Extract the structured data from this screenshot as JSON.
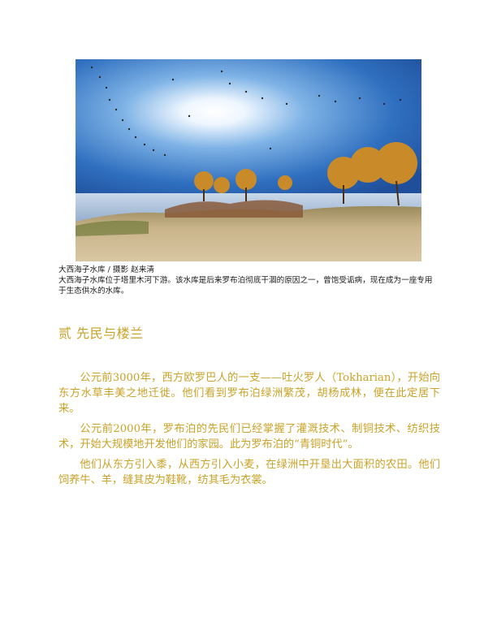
{
  "figure": {
    "title": "大西海子水库 / 摄影 赵来清",
    "description": "大西海子水库位于塔里木河下游。该水库是后来罗布泊彻底干涸的原因之一，曾饱受诟病，现在成为一座专用于生态供水的水库。"
  },
  "section": {
    "heading": "贰 先民与楼兰",
    "paragraphs": [
      "公元前3000年，西方欧罗巴人的一支——吐火罗人（Tokharian），开始向东方水草丰美之地迁徙。他们看到罗布泊绿洲繁茂，胡杨成林，便在此定居下来。",
      "公元前2000年，罗布泊的先民们已经掌握了灌溉技术、制铜技术、纺织技术，开始大规模地开发他们的家园。此为罗布泊的“青铜时代”。",
      "他们从东方引入黍，从西方引入小麦，在绿洲中开垦出大面积的农田。他们饲养牛、羊，缝其皮为鞋靴，纺其毛为衣裳。"
    ]
  },
  "colors": {
    "accent": "#c9a227",
    "caption_text": "#1a1a1a"
  }
}
